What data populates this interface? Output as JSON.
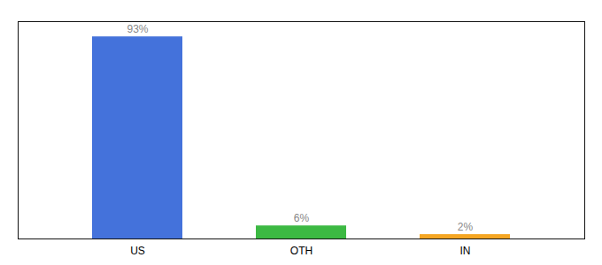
{
  "chart_data": {
    "type": "bar",
    "categories": [
      "US",
      "OTH",
      "IN"
    ],
    "values": [
      93,
      6,
      2
    ],
    "value_labels": [
      "93%",
      "6%",
      "2%"
    ],
    "data_labels": true,
    "colors": [
      "#4472db",
      "#3cb943",
      "#f5a623"
    ],
    "ylim": [
      0,
      100
    ],
    "tick_labels": "x",
    "grid": false
  }
}
